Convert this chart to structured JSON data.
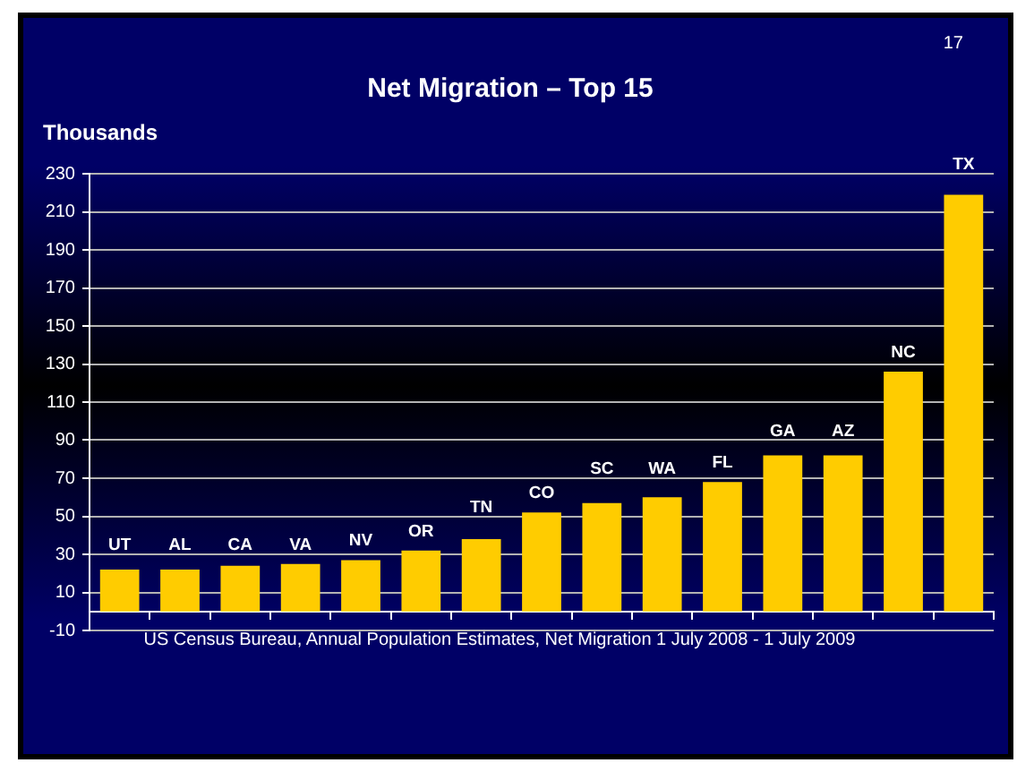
{
  "chart_data": {
    "type": "bar",
    "title": "Net Migration – Top 15",
    "ylabel": "Thousands",
    "categories": [
      "UT",
      "AL",
      "CA",
      "VA",
      "NV",
      "OR",
      "TN",
      "CO",
      "SC",
      "WA",
      "FL",
      "GA",
      "AZ",
      "NC",
      "TX"
    ],
    "values": [
      22,
      22,
      24,
      25,
      27,
      32,
      38,
      52,
      57,
      60,
      68,
      82,
      82,
      126,
      219
    ],
    "color": "#ffcc00",
    "ylim": [
      -10,
      230
    ],
    "yticks": [
      -10,
      10,
      30,
      50,
      70,
      90,
      110,
      130,
      150,
      170,
      190,
      210,
      230
    ],
    "grid": "y",
    "tick_labels": "y",
    "annotations": [
      "17",
      "US Census Bureau, Annual Population Estimates, Net Migration 1 July 2008 - 1 July 2009"
    ]
  }
}
